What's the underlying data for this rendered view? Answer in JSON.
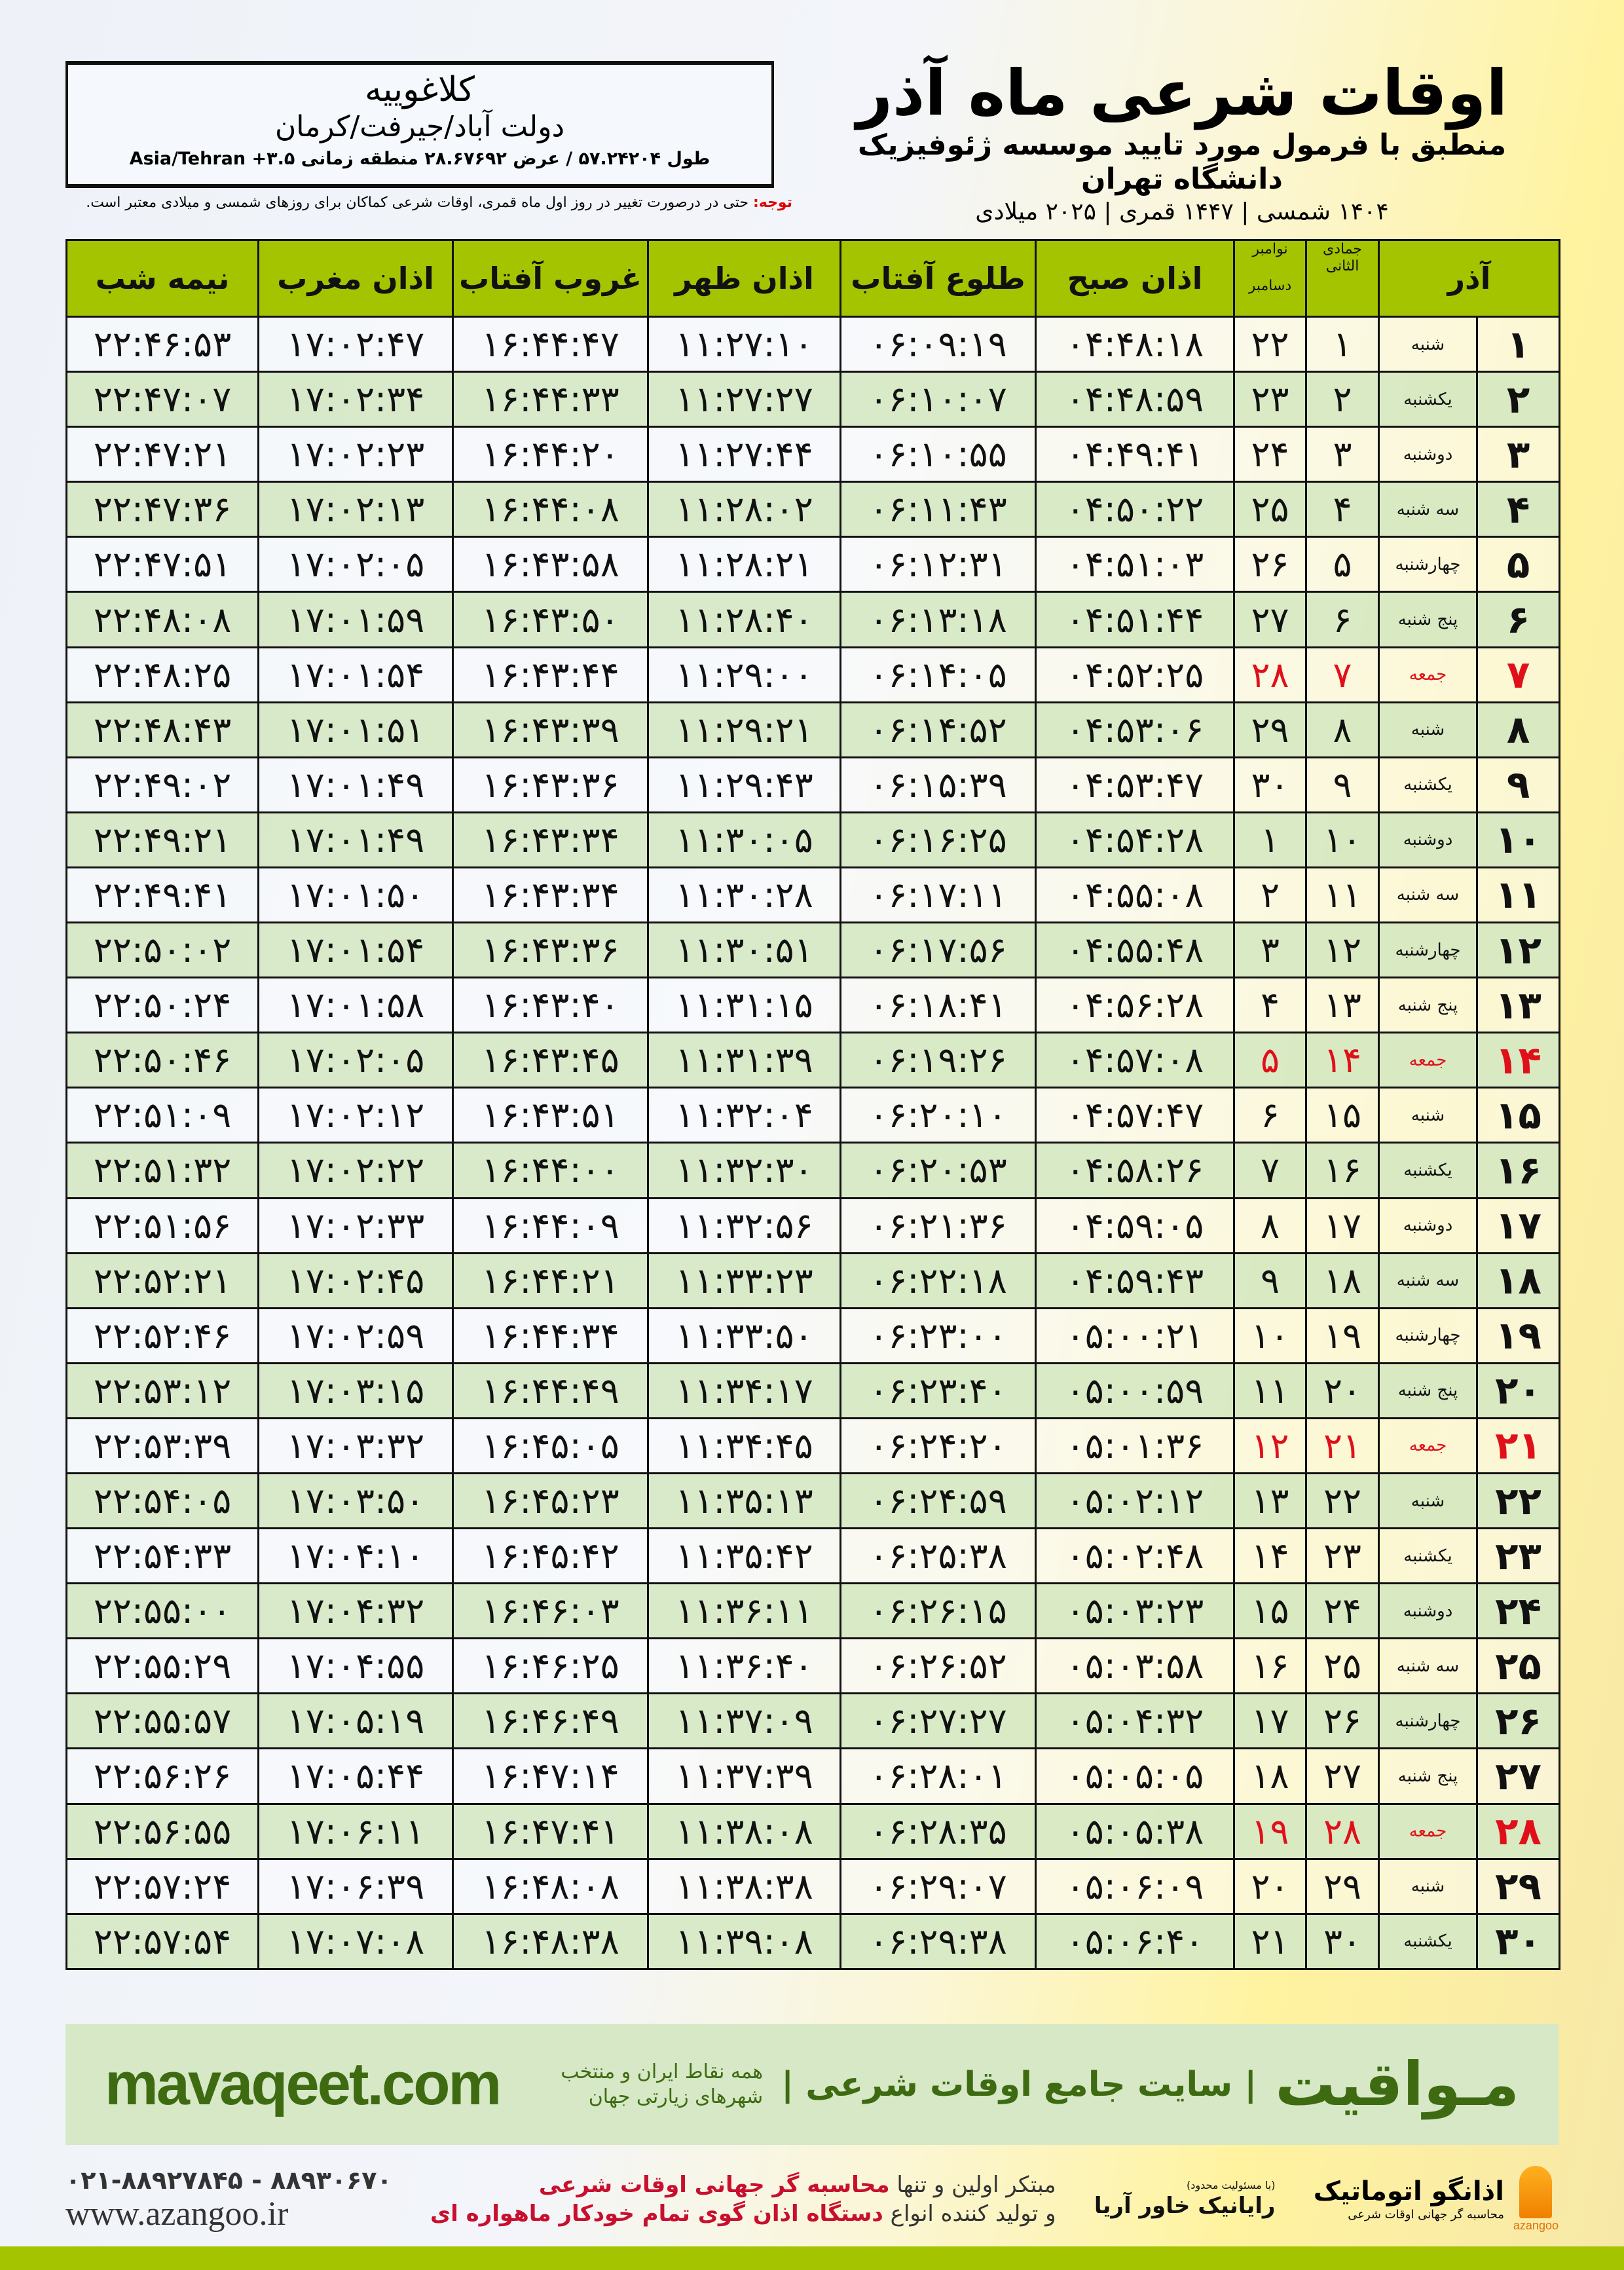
{
  "header": {
    "title": "اوقات شرعی ماه آذر",
    "subtitle": "منطبق با فرمول مورد تایید موسسه ژئوفیزیک دانشگاه تهران",
    "dates": "۱۴۰۴ شمسی | ۱۴۴۷ قمری | ۲۰۲۵ میلادی",
    "note_label": "توجه:",
    "note_text": " حتی در درصورت تغییر در روز اول ماه قمری، اوقات شرعی کماکان برای روزهای شمسی و میلادی معتبر است."
  },
  "location": {
    "name": "کلاغوییه",
    "region": "دولت آباد/جیرفت/کرمان",
    "coords": "طول ۵۷.۲۴۲۰۴ / عرض ۲۸.۶۷۶۹۲ منطقه زمانی ۳.۵+ Asia/Tehran"
  },
  "colors": {
    "header_green": "#a5c400",
    "row_green": "#d6e8c4",
    "friday_red": "#e0101a",
    "brand_green": "#3e6b12"
  },
  "table": {
    "headers": {
      "month": "آذر",
      "hijri": "جمادی الثانی",
      "greg_top": "نوامبر",
      "greg_bottom": "دسامبر",
      "sobh": "اذان صبح",
      "tolu": "طلوع آفتاب",
      "zohr": "اذان ظهر",
      "ghorub": "غروب آفتاب",
      "maghrib": "اذان مغرب",
      "nimeshab": "نیمه شب"
    },
    "rows": [
      {
        "day": "۱",
        "weekday": "شنبه",
        "hijri": "۱",
        "greg": "۲۲",
        "sobh": "۰۴:۴۸:۱۸",
        "tolu": "۰۶:۰۹:۱۹",
        "zohr": "۱۱:۲۷:۱۰",
        "ghorub": "۱۶:۴۴:۴۷",
        "maghrib": "۱۷:۰۲:۴۷",
        "nimeshab": "۲۲:۴۶:۵۳"
      },
      {
        "day": "۲",
        "weekday": "یکشنبه",
        "hijri": "۲",
        "greg": "۲۳",
        "sobh": "۰۴:۴۸:۵۹",
        "tolu": "۰۶:۱۰:۰۷",
        "zohr": "۱۱:۲۷:۲۷",
        "ghorub": "۱۶:۴۴:۳۳",
        "maghrib": "۱۷:۰۲:۳۴",
        "nimeshab": "۲۲:۴۷:۰۷"
      },
      {
        "day": "۳",
        "weekday": "دوشنبه",
        "hijri": "۳",
        "greg": "۲۴",
        "sobh": "۰۴:۴۹:۴۱",
        "tolu": "۰۶:۱۰:۵۵",
        "zohr": "۱۱:۲۷:۴۴",
        "ghorub": "۱۶:۴۴:۲۰",
        "maghrib": "۱۷:۰۲:۲۳",
        "nimeshab": "۲۲:۴۷:۲۱"
      },
      {
        "day": "۴",
        "weekday": "سه شنبه",
        "hijri": "۴",
        "greg": "۲۵",
        "sobh": "۰۴:۵۰:۲۲",
        "tolu": "۰۶:۱۱:۴۳",
        "zohr": "۱۱:۲۸:۰۲",
        "ghorub": "۱۶:۴۴:۰۸",
        "maghrib": "۱۷:۰۲:۱۳",
        "nimeshab": "۲۲:۴۷:۳۶"
      },
      {
        "day": "۵",
        "weekday": "چهارشنبه",
        "hijri": "۵",
        "greg": "۲۶",
        "sobh": "۰۴:۵۱:۰۳",
        "tolu": "۰۶:۱۲:۳۱",
        "zohr": "۱۱:۲۸:۲۱",
        "ghorub": "۱۶:۴۳:۵۸",
        "maghrib": "۱۷:۰۲:۰۵",
        "nimeshab": "۲۲:۴۷:۵۱"
      },
      {
        "day": "۶",
        "weekday": "پنج شنبه",
        "hijri": "۶",
        "greg": "۲۷",
        "sobh": "۰۴:۵۱:۴۴",
        "tolu": "۰۶:۱۳:۱۸",
        "zohr": "۱۱:۲۸:۴۰",
        "ghorub": "۱۶:۴۳:۵۰",
        "maghrib": "۱۷:۰۱:۵۹",
        "nimeshab": "۲۲:۴۸:۰۸"
      },
      {
        "day": "۷",
        "weekday": "جمعه",
        "hijri": "۷",
        "greg": "۲۸",
        "sobh": "۰۴:۵۲:۲۵",
        "tolu": "۰۶:۱۴:۰۵",
        "zohr": "۱۱:۲۹:۰۰",
        "ghorub": "۱۶:۴۳:۴۴",
        "maghrib": "۱۷:۰۱:۵۴",
        "nimeshab": "۲۲:۴۸:۲۵",
        "friday": true
      },
      {
        "day": "۸",
        "weekday": "شنبه",
        "hijri": "۸",
        "greg": "۲۹",
        "sobh": "۰۴:۵۳:۰۶",
        "tolu": "۰۶:۱۴:۵۲",
        "zohr": "۱۱:۲۹:۲۱",
        "ghorub": "۱۶:۴۳:۳۹",
        "maghrib": "۱۷:۰۱:۵۱",
        "nimeshab": "۲۲:۴۸:۴۳"
      },
      {
        "day": "۹",
        "weekday": "یکشنبه",
        "hijri": "۹",
        "greg": "۳۰",
        "sobh": "۰۴:۵۳:۴۷",
        "tolu": "۰۶:۱۵:۳۹",
        "zohr": "۱۱:۲۹:۴۳",
        "ghorub": "۱۶:۴۳:۳۶",
        "maghrib": "۱۷:۰۱:۴۹",
        "nimeshab": "۲۲:۴۹:۰۲"
      },
      {
        "day": "۱۰",
        "weekday": "دوشنبه",
        "hijri": "۱۰",
        "greg": "۱",
        "sobh": "۰۴:۵۴:۲۸",
        "tolu": "۰۶:۱۶:۲۵",
        "zohr": "۱۱:۳۰:۰۵",
        "ghorub": "۱۶:۴۳:۳۴",
        "maghrib": "۱۷:۰۱:۴۹",
        "nimeshab": "۲۲:۴۹:۲۱"
      },
      {
        "day": "۱۱",
        "weekday": "سه شنبه",
        "hijri": "۱۱",
        "greg": "۲",
        "sobh": "۰۴:۵۵:۰۸",
        "tolu": "۰۶:۱۷:۱۱",
        "zohr": "۱۱:۳۰:۲۸",
        "ghorub": "۱۶:۴۳:۳۴",
        "maghrib": "۱۷:۰۱:۵۰",
        "nimeshab": "۲۲:۴۹:۴۱"
      },
      {
        "day": "۱۲",
        "weekday": "چهارشنبه",
        "hijri": "۱۲",
        "greg": "۳",
        "sobh": "۰۴:۵۵:۴۸",
        "tolu": "۰۶:۱۷:۵۶",
        "zohr": "۱۱:۳۰:۵۱",
        "ghorub": "۱۶:۴۳:۳۶",
        "maghrib": "۱۷:۰۱:۵۴",
        "nimeshab": "۲۲:۵۰:۰۲"
      },
      {
        "day": "۱۳",
        "weekday": "پنج شنبه",
        "hijri": "۱۳",
        "greg": "۴",
        "sobh": "۰۴:۵۶:۲۸",
        "tolu": "۰۶:۱۸:۴۱",
        "zohr": "۱۱:۳۱:۱۵",
        "ghorub": "۱۶:۴۳:۴۰",
        "maghrib": "۱۷:۰۱:۵۸",
        "nimeshab": "۲۲:۵۰:۲۴"
      },
      {
        "day": "۱۴",
        "weekday": "جمعه",
        "hijri": "۱۴",
        "greg": "۵",
        "sobh": "۰۴:۵۷:۰۸",
        "tolu": "۰۶:۱۹:۲۶",
        "zohr": "۱۱:۳۱:۳۹",
        "ghorub": "۱۶:۴۳:۴۵",
        "maghrib": "۱۷:۰۲:۰۵",
        "nimeshab": "۲۲:۵۰:۴۶",
        "friday": true
      },
      {
        "day": "۱۵",
        "weekday": "شنبه",
        "hijri": "۱۵",
        "greg": "۶",
        "sobh": "۰۴:۵۷:۴۷",
        "tolu": "۰۶:۲۰:۱۰",
        "zohr": "۱۱:۳۲:۰۴",
        "ghorub": "۱۶:۴۳:۵۱",
        "maghrib": "۱۷:۰۲:۱۲",
        "nimeshab": "۲۲:۵۱:۰۹"
      },
      {
        "day": "۱۶",
        "weekday": "یکشنبه",
        "hijri": "۱۶",
        "greg": "۷",
        "sobh": "۰۴:۵۸:۲۶",
        "tolu": "۰۶:۲۰:۵۳",
        "zohr": "۱۱:۳۲:۳۰",
        "ghorub": "۱۶:۴۴:۰۰",
        "maghrib": "۱۷:۰۲:۲۲",
        "nimeshab": "۲۲:۵۱:۳۲"
      },
      {
        "day": "۱۷",
        "weekday": "دوشنبه",
        "hijri": "۱۷",
        "greg": "۸",
        "sobh": "۰۴:۵۹:۰۵",
        "tolu": "۰۶:۲۱:۳۶",
        "zohr": "۱۱:۳۲:۵۶",
        "ghorub": "۱۶:۴۴:۰۹",
        "maghrib": "۱۷:۰۲:۳۳",
        "nimeshab": "۲۲:۵۱:۵۶"
      },
      {
        "day": "۱۸",
        "weekday": "سه شنبه",
        "hijri": "۱۸",
        "greg": "۹",
        "sobh": "۰۴:۵۹:۴۳",
        "tolu": "۰۶:۲۲:۱۸",
        "zohr": "۱۱:۳۳:۲۳",
        "ghorub": "۱۶:۴۴:۲۱",
        "maghrib": "۱۷:۰۲:۴۵",
        "nimeshab": "۲۲:۵۲:۲۱"
      },
      {
        "day": "۱۹",
        "weekday": "چهارشنبه",
        "hijri": "۱۹",
        "greg": "۱۰",
        "sobh": "۰۵:۰۰:۲۱",
        "tolu": "۰۶:۲۳:۰۰",
        "zohr": "۱۱:۳۳:۵۰",
        "ghorub": "۱۶:۴۴:۳۴",
        "maghrib": "۱۷:۰۲:۵۹",
        "nimeshab": "۲۲:۵۲:۴۶"
      },
      {
        "day": "۲۰",
        "weekday": "پنج شنبه",
        "hijri": "۲۰",
        "greg": "۱۱",
        "sobh": "۰۵:۰۰:۵۹",
        "tolu": "۰۶:۲۳:۴۰",
        "zohr": "۱۱:۳۴:۱۷",
        "ghorub": "۱۶:۴۴:۴۹",
        "maghrib": "۱۷:۰۳:۱۵",
        "nimeshab": "۲۲:۵۳:۱۲"
      },
      {
        "day": "۲۱",
        "weekday": "جمعه",
        "hijri": "۲۱",
        "greg": "۱۲",
        "sobh": "۰۵:۰۱:۳۶",
        "tolu": "۰۶:۲۴:۲۰",
        "zohr": "۱۱:۳۴:۴۵",
        "ghorub": "۱۶:۴۵:۰۵",
        "maghrib": "۱۷:۰۳:۳۲",
        "nimeshab": "۲۲:۵۳:۳۹",
        "friday": true
      },
      {
        "day": "۲۲",
        "weekday": "شنبه",
        "hijri": "۲۲",
        "greg": "۱۳",
        "sobh": "۰۵:۰۲:۱۲",
        "tolu": "۰۶:۲۴:۵۹",
        "zohr": "۱۱:۳۵:۱۳",
        "ghorub": "۱۶:۴۵:۲۳",
        "maghrib": "۱۷:۰۳:۵۰",
        "nimeshab": "۲۲:۵۴:۰۵"
      },
      {
        "day": "۲۳",
        "weekday": "یکشنبه",
        "hijri": "۲۳",
        "greg": "۱۴",
        "sobh": "۰۵:۰۲:۴۸",
        "tolu": "۰۶:۲۵:۳۸",
        "zohr": "۱۱:۳۵:۴۲",
        "ghorub": "۱۶:۴۵:۴۲",
        "maghrib": "۱۷:۰۴:۱۰",
        "nimeshab": "۲۲:۵۴:۳۳"
      },
      {
        "day": "۲۴",
        "weekday": "دوشنبه",
        "hijri": "۲۴",
        "greg": "۱۵",
        "sobh": "۰۵:۰۳:۲۳",
        "tolu": "۰۶:۲۶:۱۵",
        "zohr": "۱۱:۳۶:۱۱",
        "ghorub": "۱۶:۴۶:۰۳",
        "maghrib": "۱۷:۰۴:۳۲",
        "nimeshab": "۲۲:۵۵:۰۰"
      },
      {
        "day": "۲۵",
        "weekday": "سه شنبه",
        "hijri": "۲۵",
        "greg": "۱۶",
        "sobh": "۰۵:۰۳:۵۸",
        "tolu": "۰۶:۲۶:۵۲",
        "zohr": "۱۱:۳۶:۴۰",
        "ghorub": "۱۶:۴۶:۲۵",
        "maghrib": "۱۷:۰۴:۵۵",
        "nimeshab": "۲۲:۵۵:۲۹"
      },
      {
        "day": "۲۶",
        "weekday": "چهارشنبه",
        "hijri": "۲۶",
        "greg": "۱۷",
        "sobh": "۰۵:۰۴:۳۲",
        "tolu": "۰۶:۲۷:۲۷",
        "zohr": "۱۱:۳۷:۰۹",
        "ghorub": "۱۶:۴۶:۴۹",
        "maghrib": "۱۷:۰۵:۱۹",
        "nimeshab": "۲۲:۵۵:۵۷"
      },
      {
        "day": "۲۷",
        "weekday": "پنج شنبه",
        "hijri": "۲۷",
        "greg": "۱۸",
        "sobh": "۰۵:۰۵:۰۵",
        "tolu": "۰۶:۲۸:۰۱",
        "zohr": "۱۱:۳۷:۳۹",
        "ghorub": "۱۶:۴۷:۱۴",
        "maghrib": "۱۷:۰۵:۴۴",
        "nimeshab": "۲۲:۵۶:۲۶"
      },
      {
        "day": "۲۸",
        "weekday": "جمعه",
        "hijri": "۲۸",
        "greg": "۱۹",
        "sobh": "۰۵:۰۵:۳۸",
        "tolu": "۰۶:۲۸:۳۵",
        "zohr": "۱۱:۳۸:۰۸",
        "ghorub": "۱۶:۴۷:۴۱",
        "maghrib": "۱۷:۰۶:۱۱",
        "nimeshab": "۲۲:۵۶:۵۵",
        "friday": true
      },
      {
        "day": "۲۹",
        "weekday": "شنبه",
        "hijri": "۲۹",
        "greg": "۲۰",
        "sobh": "۰۵:۰۶:۰۹",
        "tolu": "۰۶:۲۹:۰۷",
        "zohr": "۱۱:۳۸:۳۸",
        "ghorub": "۱۶:۴۸:۰۸",
        "maghrib": "۱۷:۰۶:۳۹",
        "nimeshab": "۲۲:۵۷:۲۴"
      },
      {
        "day": "۳۰",
        "weekday": "یکشنبه",
        "hijri": "۳۰",
        "greg": "۲۱",
        "sobh": "۰۵:۰۶:۴۰",
        "tolu": "۰۶:۲۹:۳۸",
        "zohr": "۱۱:۳۹:۰۸",
        "ghorub": "۱۶:۴۸:۳۸",
        "maghrib": "۱۷:۰۷:۰۸",
        "nimeshab": "۲۲:۵۷:۵۴"
      }
    ]
  },
  "footer": {
    "brand": "مـواقیت",
    "tagline": "| سایت جامع اوقات شرعی |",
    "tagline2": "همه نقاط ایران و منتخب شهرهای زیارتی جهان",
    "site": "mavaqeet.com",
    "phones": "۰۲۱-۸۸۹۲۷۸۴۵ - ۸۸۹۳۰۶۷۰",
    "azangoo_web": "www.azangoo.ir",
    "promo_1a": "مبتکر اولین و تنها ",
    "promo_1b": "محاسبه گر جهانی اوقات شرعی",
    "promo_2a": "و تولید کننده انواع ",
    "promo_2b": "دستگاه اذان گوی تمام خودکار ماهواره ای",
    "raynik_small": "(با مسئولیت محدود)",
    "raynik": "رایانیک خاور آریا",
    "azangoo_logo": "اذانگو اتوماتیک",
    "azangoo_sub": "محاسبه گر جهانی اوقات شرعی",
    "azangoo_en": "azangoo"
  }
}
